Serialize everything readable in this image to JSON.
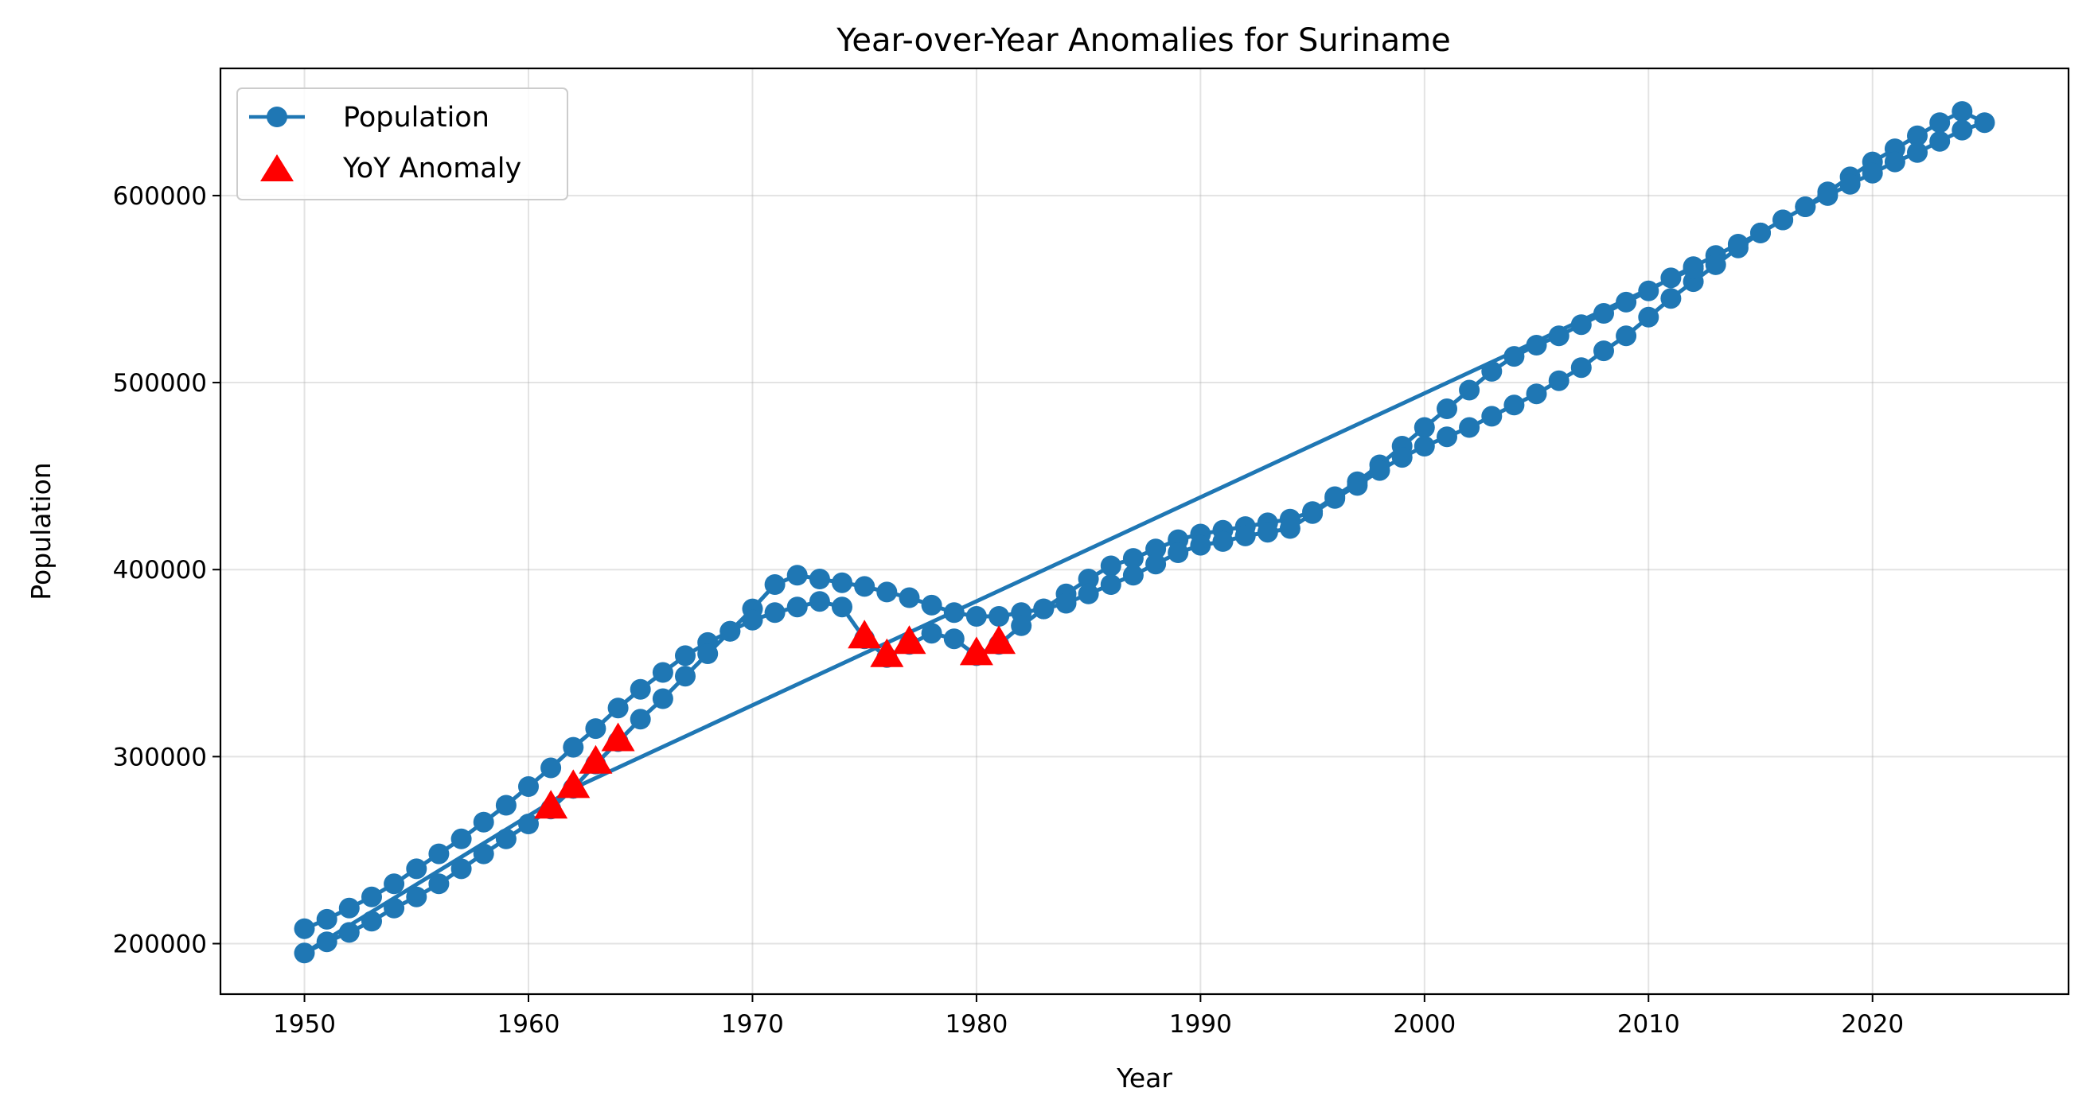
{
  "chart_data": {
    "type": "line",
    "title": "Year-over-Year Anomalies for Suriname",
    "xlabel": "Year",
    "ylabel": "Population",
    "xlim": [
      1946.25,
      2028.75
    ],
    "ylim": [
      173000,
      668000
    ],
    "x_ticks": [
      1950,
      1960,
      1970,
      1980,
      1990,
      2000,
      2010,
      2020
    ],
    "x_tick_labels": [
      "1950",
      "1960",
      "1970",
      "1980",
      "1990",
      "2000",
      "2010",
      "2020"
    ],
    "y_ticks": [
      200000,
      300000,
      400000,
      500000,
      600000
    ],
    "y_tick_labels": [
      "200000",
      "300000",
      "400000",
      "500000",
      "600000"
    ],
    "grid": true,
    "legend_position": "upper-left",
    "colors": {
      "population": "#1f77b4",
      "anomaly": "#ff0000"
    },
    "series": [
      {
        "name": "Population",
        "style": "line-with-circle-markers",
        "points": [
          [
            1950,
            208000
          ],
          [
            1951,
            213000
          ],
          [
            1952,
            219000
          ],
          [
            1953,
            225000
          ],
          [
            1954,
            232000
          ],
          [
            1955,
            240000
          ],
          [
            1956,
            248000
          ],
          [
            1957,
            256000
          ],
          [
            1958,
            265000
          ],
          [
            1959,
            274000
          ],
          [
            1960,
            284000
          ],
          [
            1961,
            294000
          ],
          [
            1962,
            305000
          ],
          [
            1963,
            315000
          ],
          [
            1964,
            326000
          ],
          [
            1965,
            336000
          ],
          [
            1966,
            345000
          ],
          [
            1967,
            354000
          ],
          [
            1968,
            361000
          ],
          [
            1969,
            367000
          ],
          [
            1970,
            379000
          ],
          [
            1971,
            392000
          ],
          [
            1972,
            397000
          ],
          [
            1973,
            395000
          ],
          [
            1974,
            393000
          ],
          [
            1975,
            391000
          ],
          [
            1976,
            388000
          ],
          [
            1977,
            385000
          ],
          [
            1978,
            381000
          ],
          [
            1979,
            377000
          ],
          [
            1980,
            375000
          ],
          [
            1981,
            375000
          ],
          [
            1982,
            377000
          ],
          [
            1983,
            379000
          ],
          [
            1984,
            387000
          ],
          [
            1985,
            395000
          ],
          [
            1986,
            402000
          ],
          [
            1987,
            406000
          ],
          [
            1988,
            411000
          ],
          [
            1989,
            416000
          ],
          [
            1990,
            419000
          ],
          [
            1991,
            421000
          ],
          [
            1992,
            423000
          ],
          [
            1993,
            425000
          ],
          [
            1994,
            427000
          ],
          [
            1995,
            431000
          ],
          [
            1996,
            439000
          ],
          [
            1997,
            447000
          ],
          [
            1998,
            456000
          ],
          [
            1999,
            466000
          ],
          [
            2000,
            476000
          ],
          [
            2001,
            486000
          ],
          [
            2002,
            496000
          ],
          [
            2003,
            506000
          ],
          [
            2004,
            514000
          ],
          [
            2005,
            520000
          ],
          [
            2006,
            525000
          ],
          [
            2007,
            531000
          ],
          [
            2008,
            537000
          ],
          [
            2009,
            543000
          ],
          [
            2010,
            549000
          ],
          [
            2011,
            556000
          ],
          [
            2012,
            562000
          ],
          [
            2013,
            568000
          ],
          [
            2014,
            574000
          ],
          [
            2015,
            580000
          ],
          [
            2016,
            587000
          ],
          [
            2017,
            594000
          ],
          [
            2018,
            602000
          ],
          [
            2019,
            610000
          ],
          [
            2020,
            618000
          ],
          [
            2021,
            625000
          ],
          [
            2022,
            632000
          ],
          [
            2023,
            639000
          ],
          [
            2024,
            645000
          ],
          [
            2025,
            639000
          ],
          [
            2024,
            635000
          ],
          [
            2023,
            629000
          ],
          [
            2022,
            623000
          ],
          [
            2021,
            618000
          ],
          [
            2020,
            612000
          ],
          [
            2019,
            606000
          ],
          [
            2018,
            600000
          ],
          [
            2017,
            594000
          ],
          [
            2016,
            587000
          ],
          [
            2015,
            580000
          ],
          [
            2014,
            572000
          ],
          [
            2013,
            563000
          ],
          [
            2012,
            554000
          ],
          [
            2011,
            545000
          ],
          [
            2010,
            535000
          ],
          [
            2009,
            525000
          ],
          [
            2008,
            517000
          ],
          [
            2007,
            508000
          ],
          [
            2006,
            501000
          ],
          [
            2005,
            494000
          ],
          [
            2004,
            488000
          ],
          [
            2003,
            482000
          ],
          [
            2002,
            476000
          ],
          [
            2001,
            471000
          ],
          [
            2000,
            466000
          ],
          [
            1999,
            460000
          ],
          [
            1998,
            453000
          ],
          [
            1997,
            445000
          ],
          [
            1996,
            438000
          ],
          [
            1995,
            430000
          ],
          [
            1994,
            422000
          ],
          [
            1993,
            420000
          ],
          [
            1992,
            418000
          ],
          [
            1991,
            415000
          ],
          [
            1990,
            413000
          ],
          [
            1989,
            409000
          ],
          [
            1988,
            403000
          ],
          [
            1987,
            397000
          ],
          [
            1986,
            392000
          ],
          [
            1985,
            387000
          ],
          [
            1984,
            382000
          ],
          [
            1983,
            379000
          ],
          [
            1982,
            370000
          ],
          [
            1981,
            360000
          ],
          [
            1980,
            354000
          ],
          [
            1979,
            363000
          ],
          [
            1978,
            366000
          ],
          [
            1977,
            360000
          ],
          [
            1976,
            353000
          ],
          [
            1975,
            363000
          ],
          [
            1974,
            380000
          ],
          [
            1973,
            383000
          ],
          [
            1972,
            380000
          ],
          [
            1971,
            377000
          ],
          [
            1970,
            373000
          ],
          [
            1969,
            367000
          ],
          [
            1968,
            355000
          ],
          [
            1967,
            343000
          ],
          [
            1966,
            331000
          ],
          [
            1965,
            320000
          ],
          [
            1964,
            308000
          ],
          [
            1963,
            296000
          ],
          [
            1962,
            283000
          ],
          [
            1961,
            272000
          ],
          [
            1960,
            264000
          ],
          [
            1959,
            256000
          ],
          [
            1958,
            248000
          ],
          [
            1957,
            240000
          ],
          [
            1956,
            232000
          ],
          [
            1955,
            225000
          ],
          [
            1954,
            219000
          ],
          [
            1953,
            212000
          ],
          [
            1952,
            206000
          ],
          [
            1951,
            201000
          ],
          [
            1950,
            195000
          ],
          [
            1962,
            283000
          ],
          [
            2012,
            561000
          ]
        ]
      },
      {
        "name": "YoY Anomaly",
        "style": "triangle-markers",
        "points": [
          [
            1961,
            272000
          ],
          [
            1962,
            283000
          ],
          [
            1963,
            296000
          ],
          [
            1964,
            308000
          ],
          [
            1975,
            363000
          ],
          [
            1976,
            353000
          ],
          [
            1977,
            360000
          ],
          [
            1980,
            354000
          ],
          [
            1981,
            360000
          ]
        ]
      }
    ]
  }
}
